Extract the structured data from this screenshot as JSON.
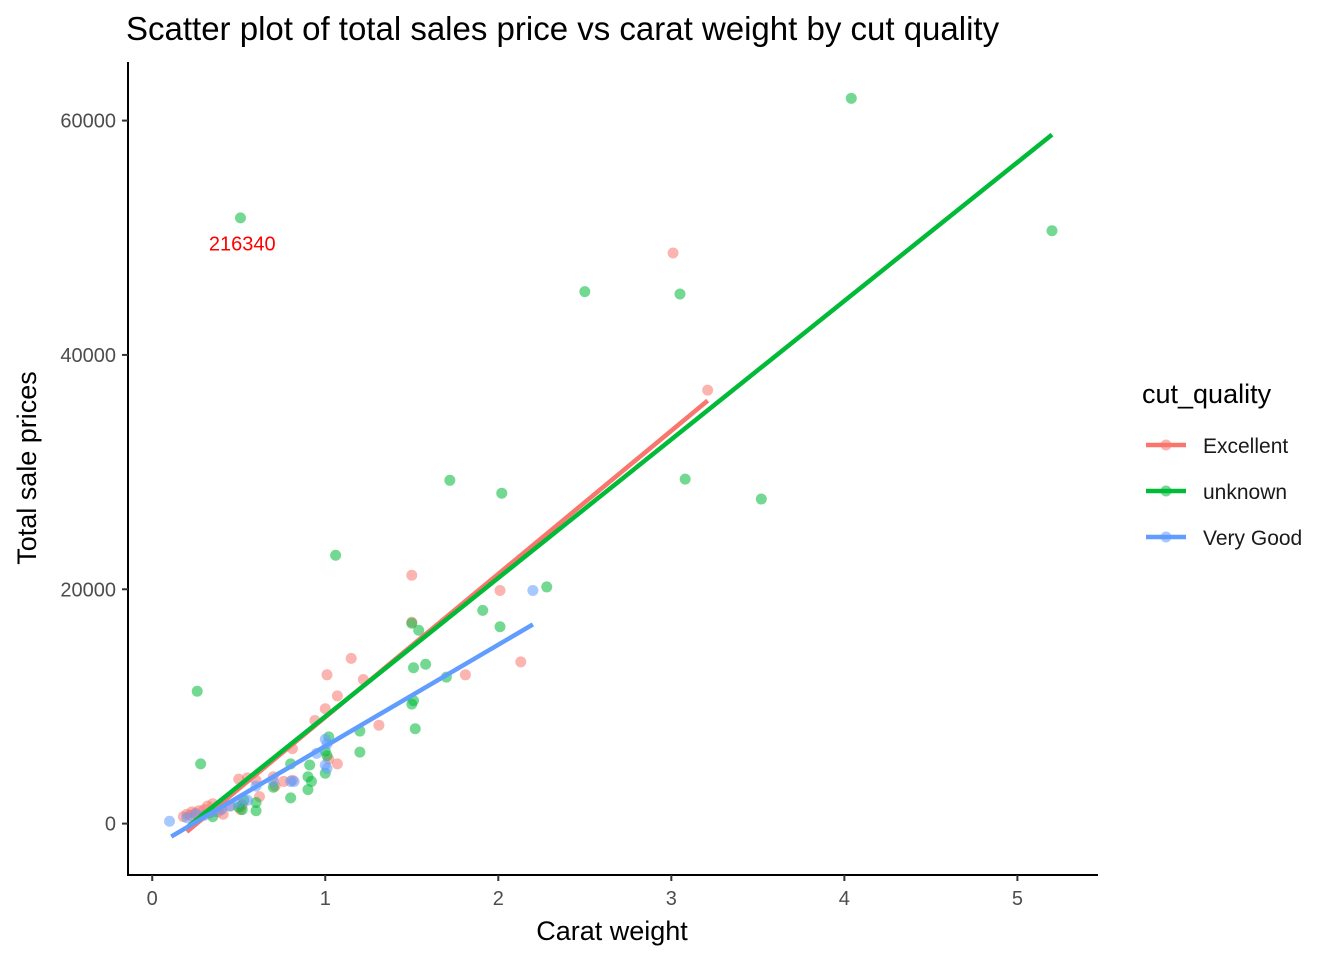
{
  "chart_data": {
    "type": "scatter",
    "title": "Scatter plot of total sales price vs carat weight by cut quality",
    "xlabel": "Carat weight",
    "ylabel": "Total sale prices",
    "xlim": [
      -0.14,
      5.46
    ],
    "ylim": [
      -4300,
      65000
    ],
    "x_ticks": [
      0,
      1,
      2,
      3,
      4,
      5
    ],
    "y_ticks": [
      0,
      20000,
      40000,
      60000
    ],
    "grid": false,
    "legend": {
      "title": "cut_quality",
      "placement": "right"
    },
    "annotations": [
      {
        "text": "216340",
        "x": 0.52,
        "y": 49500,
        "color": "#ff0000"
      }
    ],
    "series": [
      {
        "name": "Excellent",
        "color": "#F8766D",
        "trend": [
          [
            0.2,
            -700
          ],
          [
            3.21,
            36100
          ]
        ],
        "points": [
          [
            0.18,
            600
          ],
          [
            0.2,
            800
          ],
          [
            0.22,
            700
          ],
          [
            0.23,
            1000
          ],
          [
            0.25,
            900
          ],
          [
            0.27,
            1100
          ],
          [
            0.3,
            1200
          ],
          [
            0.32,
            1500
          ],
          [
            0.33,
            900
          ],
          [
            0.35,
            1700
          ],
          [
            0.38,
            1000
          ],
          [
            0.4,
            1300
          ],
          [
            0.41,
            800
          ],
          [
            0.45,
            1500
          ],
          [
            0.5,
            3800
          ],
          [
            0.51,
            1200
          ],
          [
            0.52,
            1600
          ],
          [
            0.55,
            3900
          ],
          [
            0.6,
            3700
          ],
          [
            0.62,
            2300
          ],
          [
            0.7,
            4000
          ],
          [
            0.71,
            3200
          ],
          [
            0.76,
            3600
          ],
          [
            0.81,
            6400
          ],
          [
            0.81,
            3700
          ],
          [
            0.94,
            8800
          ],
          [
            1.0,
            9800
          ],
          [
            1.01,
            12700
          ],
          [
            1.02,
            5500
          ],
          [
            1.07,
            10900
          ],
          [
            1.07,
            5100
          ],
          [
            1.15,
            14100
          ],
          [
            1.22,
            12300
          ],
          [
            1.31,
            8400
          ],
          [
            1.5,
            21200
          ],
          [
            1.5,
            17200
          ],
          [
            1.81,
            12700
          ],
          [
            2.01,
            19900
          ],
          [
            2.13,
            13800
          ],
          [
            3.01,
            48700
          ],
          [
            3.21,
            37000
          ]
        ]
      },
      {
        "name": "unknown",
        "color": "#00BA38",
        "trend": [
          [
            0.21,
            -200
          ],
          [
            5.2,
            58800
          ]
        ],
        "points": [
          [
            0.26,
            11300
          ],
          [
            0.28,
            5100
          ],
          [
            0.35,
            600
          ],
          [
            0.5,
            1400
          ],
          [
            0.51,
            51700
          ],
          [
            0.52,
            1200
          ],
          [
            0.53,
            2000
          ],
          [
            0.6,
            1100
          ],
          [
            0.6,
            1800
          ],
          [
            0.7,
            3100
          ],
          [
            0.8,
            5100
          ],
          [
            0.8,
            2200
          ],
          [
            0.9,
            2900
          ],
          [
            0.9,
            4000
          ],
          [
            0.91,
            5000
          ],
          [
            0.92,
            3600
          ],
          [
            1.0,
            4300
          ],
          [
            1.0,
            6200
          ],
          [
            1.01,
            5800
          ],
          [
            1.02,
            7400
          ],
          [
            1.06,
            22900
          ],
          [
            1.2,
            6100
          ],
          [
            1.2,
            7900
          ],
          [
            1.5,
            10200
          ],
          [
            1.5,
            17100
          ],
          [
            1.51,
            13300
          ],
          [
            1.51,
            10500
          ],
          [
            1.52,
            8100
          ],
          [
            1.54,
            16500
          ],
          [
            1.58,
            13600
          ],
          [
            1.7,
            12500
          ],
          [
            1.72,
            29300
          ],
          [
            1.91,
            18200
          ],
          [
            2.01,
            16800
          ],
          [
            2.02,
            28200
          ],
          [
            2.28,
            20200
          ],
          [
            2.5,
            45400
          ],
          [
            3.05,
            45200
          ],
          [
            3.08,
            29400
          ],
          [
            3.52,
            27700
          ],
          [
            4.04,
            61900
          ],
          [
            5.2,
            50600
          ]
        ]
      },
      {
        "name": "Very Good",
        "color": "#619CFF",
        "trend": [
          [
            0.11,
            -1100
          ],
          [
            2.2,
            17000
          ]
        ],
        "points": [
          [
            0.1,
            200
          ],
          [
            0.2,
            500
          ],
          [
            0.25,
            800
          ],
          [
            0.3,
            700
          ],
          [
            0.35,
            1000
          ],
          [
            0.4,
            1200
          ],
          [
            0.45,
            1500
          ],
          [
            0.5,
            1800
          ],
          [
            0.55,
            2000
          ],
          [
            0.6,
            3200
          ],
          [
            0.7,
            3600
          ],
          [
            0.8,
            3600
          ],
          [
            0.82,
            3600
          ],
          [
            0.95,
            6000
          ],
          [
            1.0,
            7200
          ],
          [
            1.0,
            5000
          ],
          [
            1.01,
            4700
          ],
          [
            1.01,
            6800
          ],
          [
            2.2,
            19900
          ]
        ]
      }
    ]
  }
}
